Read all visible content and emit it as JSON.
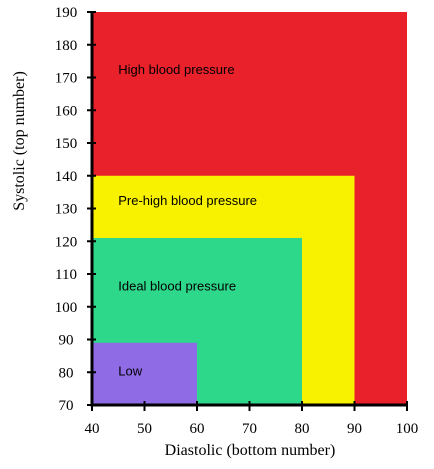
{
  "chart_data": {
    "type": "area",
    "xlabel": "Diastolic (bottom number)",
    "ylabel": "Systolic (top number)",
    "xlim": [
      40,
      100
    ],
    "ylim": [
      70,
      190
    ],
    "xticks": [
      40,
      50,
      60,
      70,
      80,
      90,
      100
    ],
    "yticks": [
      70,
      80,
      90,
      100,
      110,
      120,
      130,
      140,
      150,
      160,
      170,
      180,
      190
    ],
    "regions": [
      {
        "name": "High blood pressure",
        "x": [
          40,
          100
        ],
        "y": [
          70,
          190
        ],
        "color": "#e8212a",
        "label_at": [
          45,
          171
        ]
      },
      {
        "name": "Pre-high blood pressure",
        "x": [
          40,
          90
        ],
        "y": [
          70,
          140
        ],
        "color": "#f8f200",
        "label_at": [
          45,
          131
        ]
      },
      {
        "name": "Ideal blood pressure",
        "x": [
          40,
          80
        ],
        "y": [
          70,
          121
        ],
        "color": "#2ed88b",
        "label_at": [
          45,
          105
        ]
      },
      {
        "name": "Low",
        "x": [
          40,
          60
        ],
        "y": [
          70,
          89
        ],
        "color": "#8f6be6",
        "label_at": [
          45,
          79
        ]
      }
    ]
  }
}
